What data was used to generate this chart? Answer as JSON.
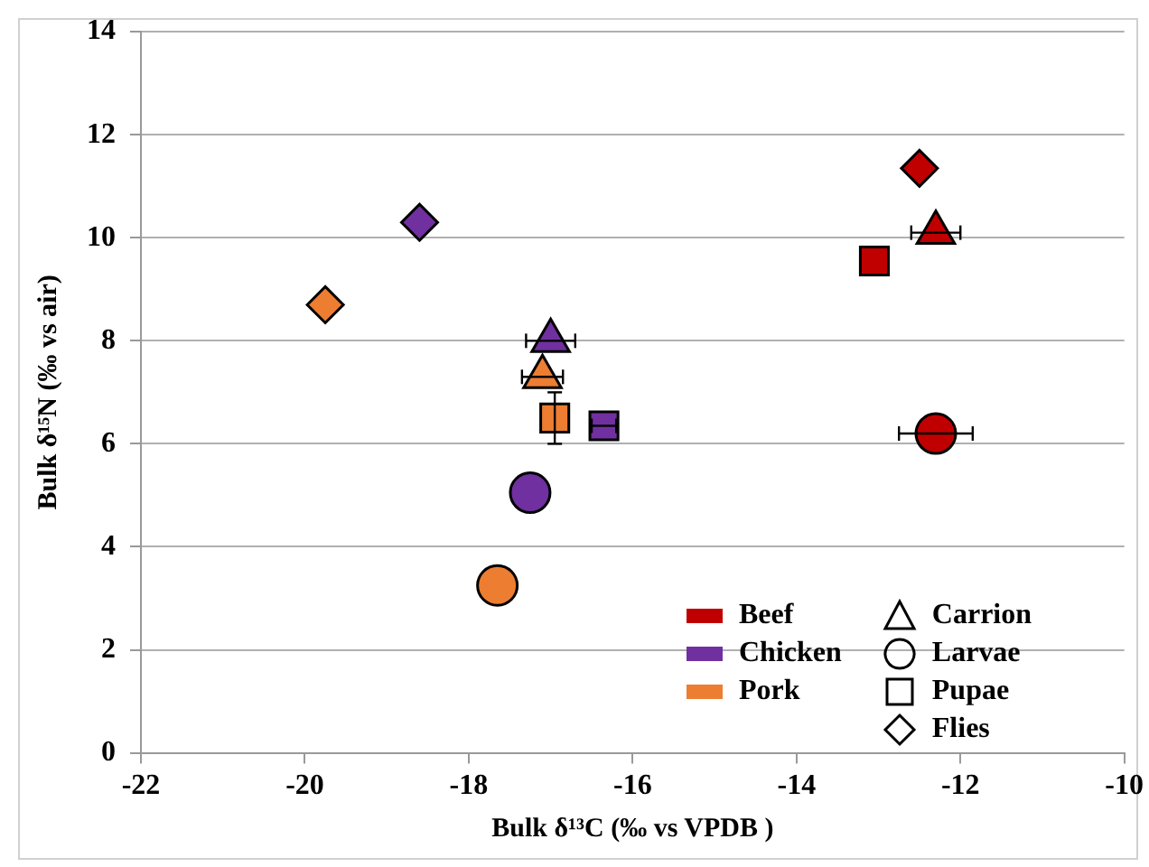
{
  "chart_data": {
    "type": "scatter",
    "xlabel": "Bulk δ¹³C (‰ vs VPDB )",
    "ylabel": "Bulk δ¹⁵N (‰ vs air)",
    "xlim": [
      -22,
      -10
    ],
    "xticks": [
      -22,
      -20,
      -18,
      -16,
      -14,
      -12,
      -10
    ],
    "ylim": [
      0,
      14
    ],
    "yticks": [
      0,
      2,
      4,
      6,
      8,
      10,
      12,
      14
    ],
    "grid": "y",
    "legend": "bottom right",
    "series": [
      {
        "name": "Beef",
        "color": "#c00000",
        "x": [
          -12.3,
          -12.3,
          -13.05,
          -12.5
        ],
        "values": [
          10.1,
          6.2,
          9.55,
          11.35
        ],
        "marker": [
          "triangle",
          "circle",
          "square",
          "diamond"
        ],
        "xerrors": [
          0.3,
          0.45,
          null,
          null
        ],
        "errors": [
          null,
          null,
          null,
          null
        ]
      },
      {
        "name": "Chicken",
        "color": "#7030a0",
        "x": [
          -17.0,
          -17.25,
          -16.35,
          -18.6
        ],
        "values": [
          8.0,
          5.05,
          6.35,
          10.3
        ],
        "marker": [
          "triangle",
          "circle",
          "square",
          "diamond"
        ],
        "xerrors": [
          0.3,
          null,
          0.15,
          null
        ],
        "errors": [
          null,
          null,
          null,
          null
        ]
      },
      {
        "name": "Pork",
        "color": "#ed7d31",
        "x": [
          -17.1,
          -17.65,
          -16.95,
          -19.75
        ],
        "values": [
          7.3,
          3.25,
          6.5,
          8.7
        ],
        "marker": [
          "triangle",
          "circle",
          "square",
          "diamond"
        ],
        "xerrors": [
          0.25,
          null,
          null,
          null
        ],
        "errors": [
          null,
          null,
          0.5,
          null
        ]
      },
      {
        "name": "Carrion",
        "marker": "triangle"
      },
      {
        "name": "Larvae",
        "marker": "circle"
      },
      {
        "name": "Pupae",
        "marker": "square"
      },
      {
        "name": "Flies",
        "marker": "diamond"
      }
    ]
  }
}
